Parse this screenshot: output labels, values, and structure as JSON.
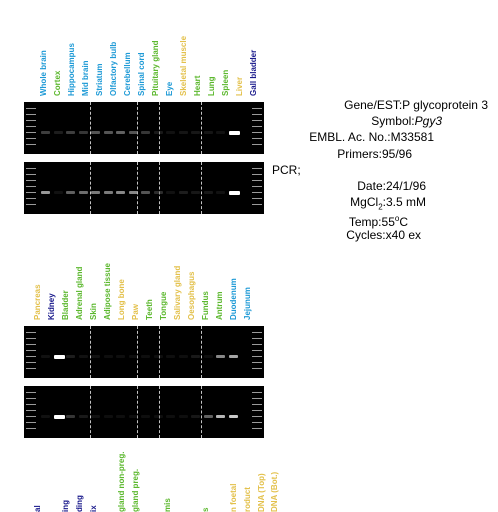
{
  "colors": {
    "dark_blue": "#1a1a8c",
    "cyan": "#1e9ad6",
    "green": "#5cb82e",
    "yellow": "#e3c14c"
  },
  "panel1": {
    "lanes": [
      {
        "label": "Whole brain",
        "color": "cyan"
      },
      {
        "label": "Cortex",
        "color": "green"
      },
      {
        "label": "Hippocampus",
        "color": "cyan"
      },
      {
        "label": "Mid brain",
        "color": "cyan"
      },
      {
        "label": "Striatum",
        "color": "cyan"
      },
      {
        "label": "Olfactory bulb",
        "color": "cyan"
      },
      {
        "label": "Cerebellum",
        "color": "cyan"
      },
      {
        "label": "Spinal cord",
        "color": "cyan"
      },
      {
        "label": "Pituitary gland",
        "color": "green"
      },
      {
        "label": "Eye",
        "color": "cyan"
      },
      {
        "label": "Skeletal muscle",
        "color": "yellow"
      },
      {
        "label": "Heart",
        "color": "green"
      },
      {
        "label": "Lung",
        "color": "green"
      },
      {
        "label": "Spleen",
        "color": "green"
      },
      {
        "label": "Liver",
        "color": "yellow"
      },
      {
        "label": "Gall bladder",
        "color": "dark_blue"
      }
    ]
  },
  "panel2": {
    "lanes": [
      {
        "label": "Pancreas",
        "color": "yellow"
      },
      {
        "label": "Kidney",
        "color": "dark_blue"
      },
      {
        "label": "Bladder",
        "color": "green"
      },
      {
        "label": "Adrenal gland",
        "color": "green"
      },
      {
        "label": "Skin",
        "color": "green"
      },
      {
        "label": "Adipose tissue",
        "color": "green"
      },
      {
        "label": "Long bone",
        "color": "yellow"
      },
      {
        "label": "Paw",
        "color": "yellow"
      },
      {
        "label": "Teeth",
        "color": "green"
      },
      {
        "label": "Tongue",
        "color": "green"
      },
      {
        "label": "Salivary gland",
        "color": "yellow"
      },
      {
        "label": "Oesophagus",
        "color": "yellow"
      },
      {
        "label": "Fundus",
        "color": "green"
      },
      {
        "label": "Antrum",
        "color": "green"
      },
      {
        "label": "Duodenum",
        "color": "cyan"
      },
      {
        "label": "Jejunum",
        "color": "cyan"
      }
    ]
  },
  "panel3": {
    "lanes": [
      {
        "label": "al",
        "color": "dark_blue"
      },
      {
        "label": "ing",
        "color": "dark_blue"
      },
      {
        "label": "ding",
        "color": "dark_blue"
      },
      {
        "label": "ix",
        "color": "dark_blue"
      },
      {
        "label": "gland non-preg.",
        "color": "green"
      },
      {
        "label": "gland preg.",
        "color": "green"
      },
      {
        "label": "mis",
        "color": "green"
      },
      {
        "label": "s",
        "color": "green"
      },
      {
        "label": "n foetal",
        "color": "yellow"
      },
      {
        "label": "roduct",
        "color": "yellow"
      },
      {
        "label": "DNA (Top)",
        "color": "yellow"
      },
      {
        "label": "DNA (Bot.)",
        "color": "yellow"
      }
    ]
  },
  "info": {
    "gene_label": "Gene/EST:",
    "gene_value": "P glycoprotein 3",
    "symbol_label": "Symbol:",
    "symbol_value": "Pgy3",
    "embl_label": "EMBL. Ac. No.:",
    "embl_value": "M33581",
    "primers_label": "Primers:",
    "primers_value": "95/96",
    "pcr_label": "PCR;",
    "date_label": "Date:",
    "date_value": "24/1/96",
    "mgcl_label_main": "MgCl",
    "mgcl_sub": "2",
    "mgcl_colon": ":",
    "mgcl_value": "3.5 mM",
    "temp_label": "Temp:",
    "temp_value_num": "55",
    "temp_sup": "o",
    "temp_unit": "C",
    "cycles_label": "Cycles:",
    "cycles_value": "x40 ex"
  },
  "gels": [
    {
      "bands": [
        0.35,
        0.15,
        0.35,
        0.3,
        0.45,
        0.45,
        0.5,
        0.45,
        0.3,
        0.12,
        0.05,
        0.08,
        0.1,
        0.08,
        0.05,
        1.0
      ]
    },
    {
      "bands": [
        0.7,
        0.05,
        0.5,
        0.55,
        0.6,
        0.6,
        0.65,
        0.65,
        0.45,
        0.25,
        0.05,
        0.15,
        0.1,
        0.1,
        0.05,
        1.0
      ]
    },
    {
      "bands": [
        0.05,
        1.0,
        0.15,
        0.05,
        0.05,
        0.02,
        0.02,
        0.02,
        0.02,
        0.02,
        0.02,
        0.02,
        0.12,
        0.02,
        0.65,
        0.75
      ]
    },
    {
      "bands": [
        0.05,
        1.0,
        0.3,
        0.12,
        0.05,
        0.02,
        0.02,
        0.02,
        0.02,
        0.02,
        0.02,
        0.02,
        0.1,
        0.5,
        0.8,
        0.85
      ]
    }
  ]
}
